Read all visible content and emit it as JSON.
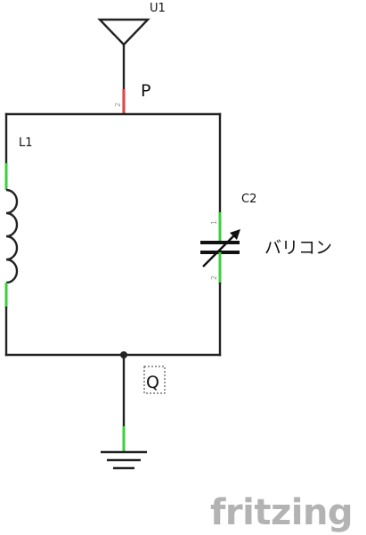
{
  "labels": {
    "antenna": "U1",
    "antenna_net": "P",
    "inductor": "L1",
    "capacitor": "C2",
    "capacitor_note": "バリコン",
    "ground_net": "Q"
  },
  "pins": {
    "antenna_pin": "2",
    "cap_pin_top": "1",
    "cap_pin_bottom": "2"
  },
  "brand": {
    "logo": "fritzing"
  },
  "colors": {
    "wire": "#222222",
    "pin_connected": "#3ccf3c",
    "pin_unconnected": "#e04a4a",
    "logo": "#b3b3b3"
  }
}
